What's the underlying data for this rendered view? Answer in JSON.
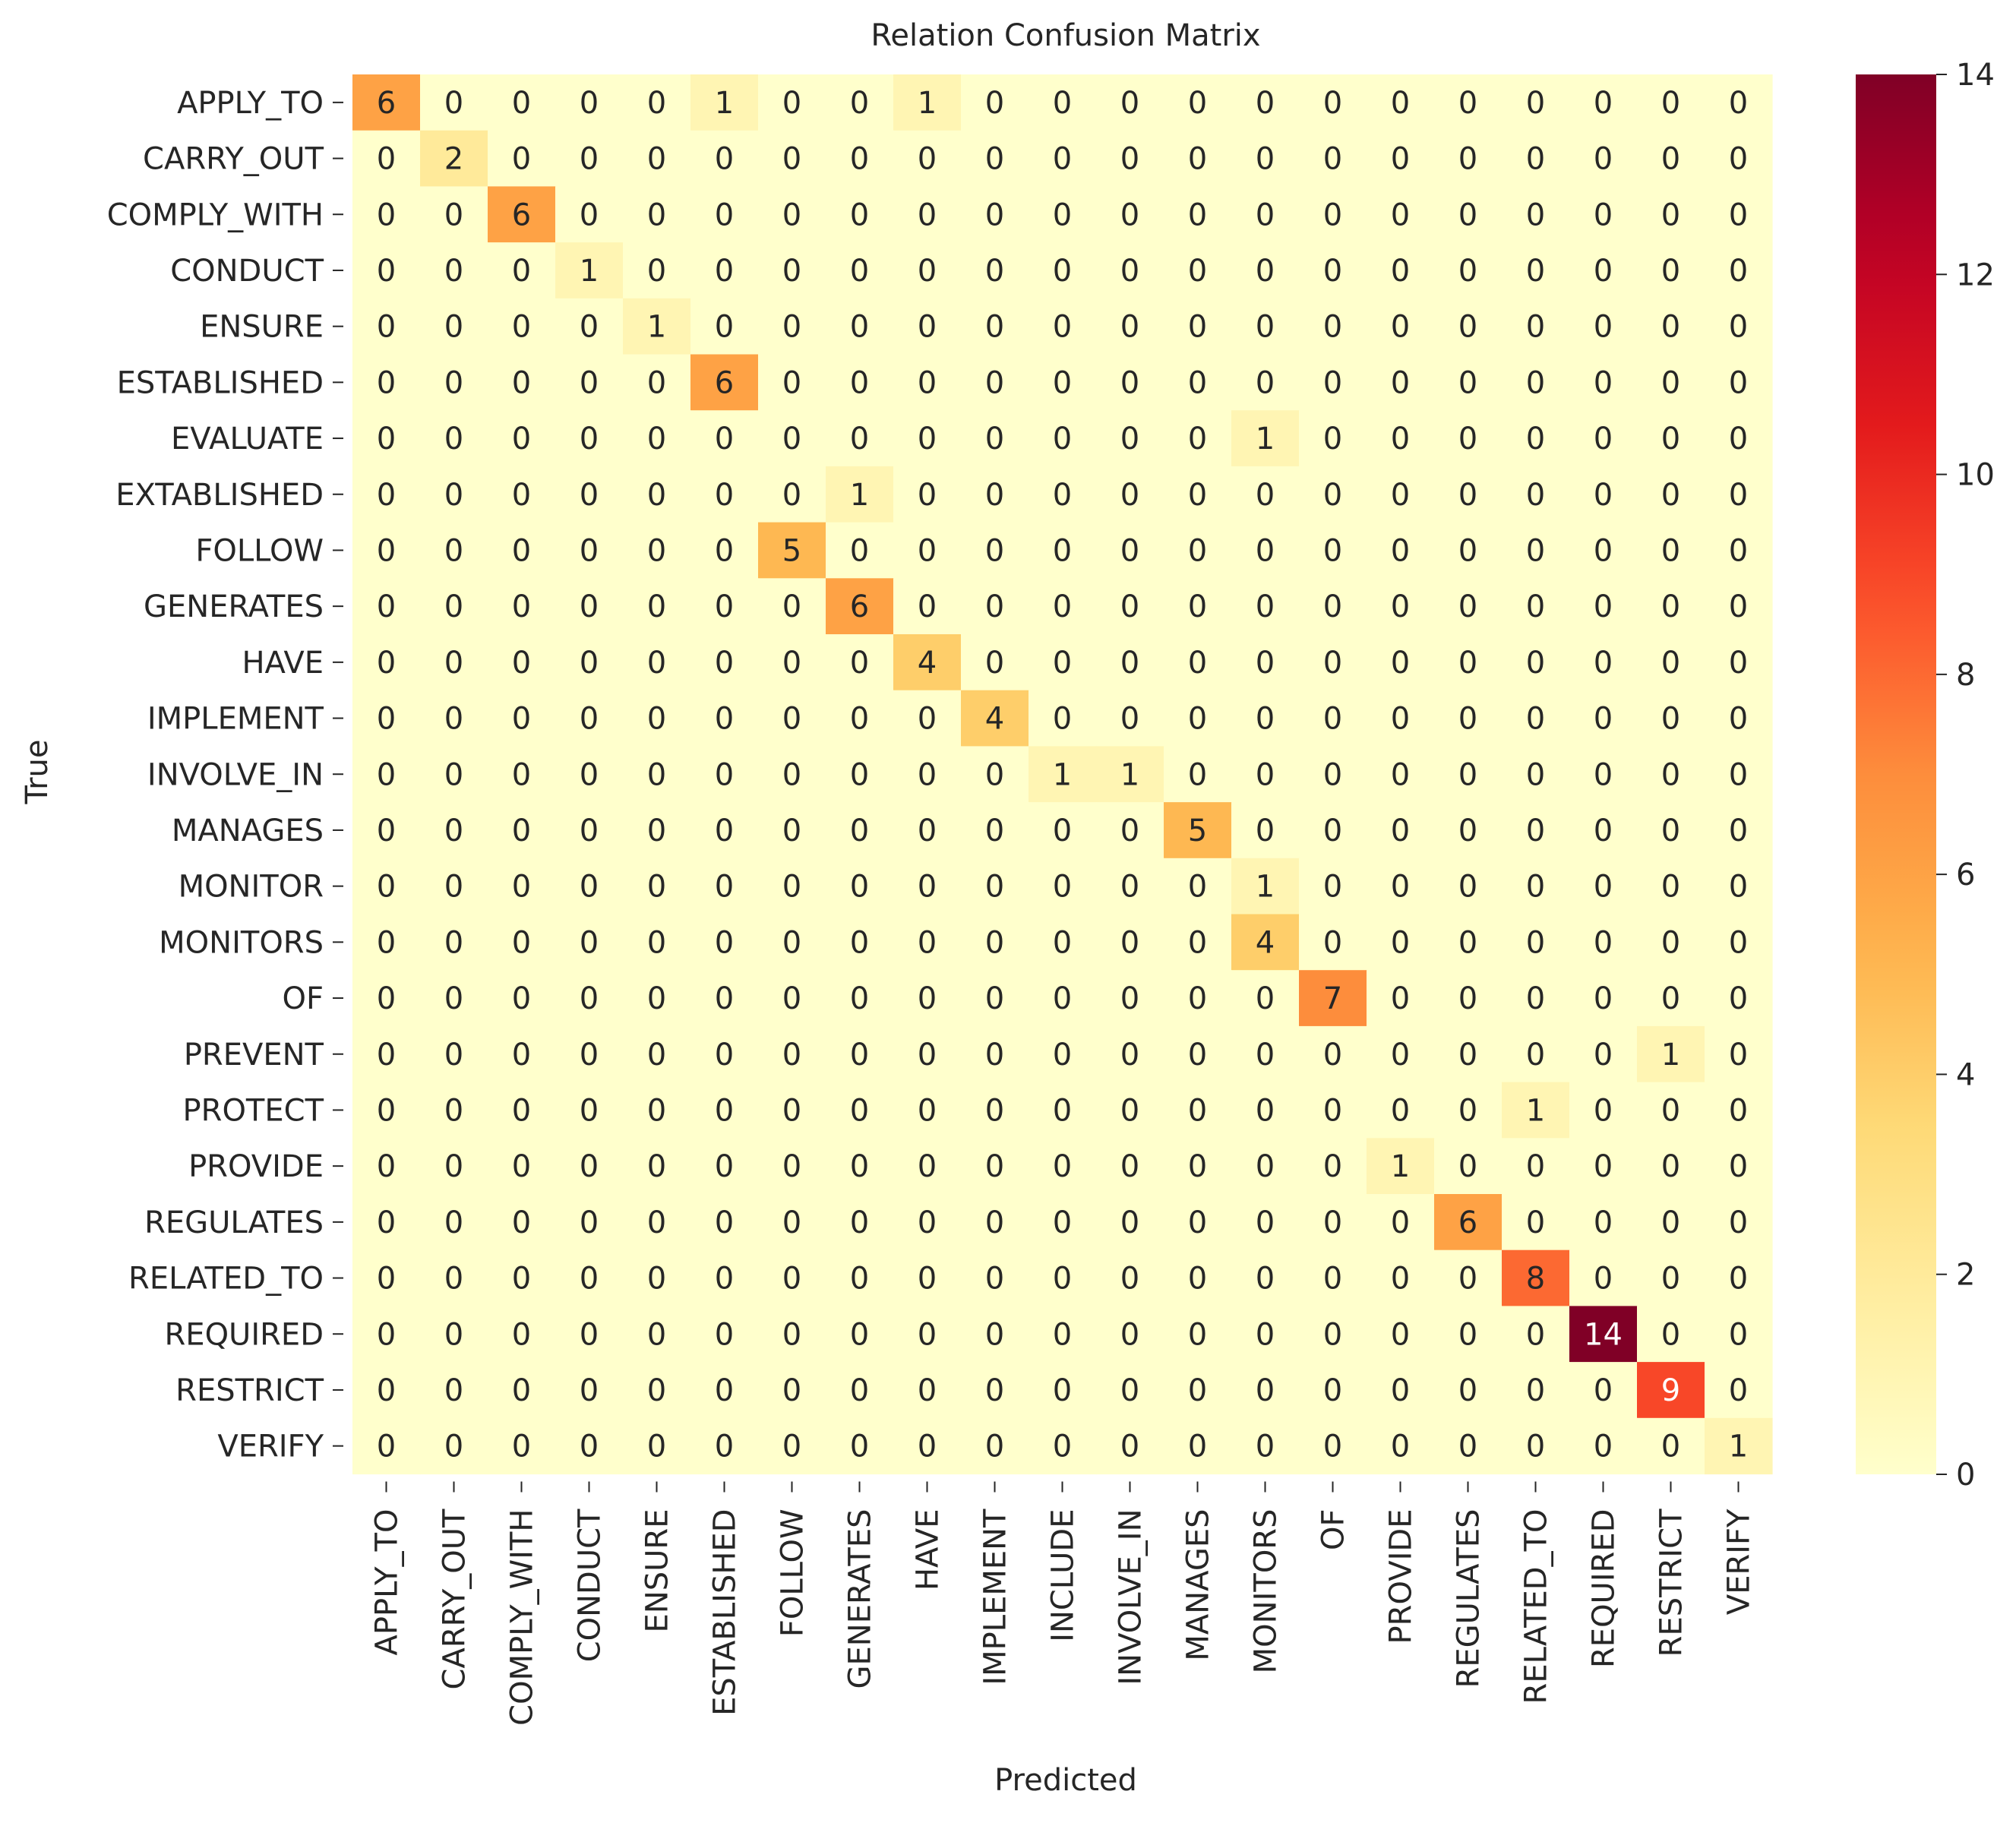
{
  "chart_data": {
    "type": "heatmap",
    "title": "Relation Confusion Matrix",
    "xlabel": "Predicted",
    "ylabel": "True",
    "x_categories": [
      "APPLY_TO",
      "CARRY_OUT",
      "COMPLY_WITH",
      "CONDUCT",
      "ENSURE",
      "ESTABLISHED",
      "FOLLOW",
      "GENERATES",
      "HAVE",
      "IMPLEMENT",
      "INCLUDE",
      "INVOLVE_IN",
      "MANAGES",
      "MONITORS",
      "OF",
      "PROVIDE",
      "REGULATES",
      "RELATED_TO",
      "REQUIRED",
      "RESTRICT",
      "VERIFY"
    ],
    "y_categories": [
      "APPLY_TO",
      "CARRY_OUT",
      "COMPLY_WITH",
      "CONDUCT",
      "ENSURE",
      "ESTABLISHED",
      "EVALUATE",
      "EXTABLISHED",
      "FOLLOW",
      "GENERATES",
      "HAVE",
      "IMPLEMENT",
      "INVOLVE_IN",
      "MANAGES",
      "MONITOR",
      "MONITORS",
      "OF",
      "PREVENT",
      "PROTECT",
      "PROVIDE",
      "REGULATES",
      "RELATED_TO",
      "REQUIRED",
      "RESTRICT",
      "VERIFY"
    ],
    "values": [
      [
        6,
        0,
        0,
        0,
        0,
        1,
        0,
        0,
        1,
        0,
        0,
        0,
        0,
        0,
        0,
        0,
        0,
        0,
        0,
        0,
        0
      ],
      [
        0,
        2,
        0,
        0,
        0,
        0,
        0,
        0,
        0,
        0,
        0,
        0,
        0,
        0,
        0,
        0,
        0,
        0,
        0,
        0,
        0
      ],
      [
        0,
        0,
        6,
        0,
        0,
        0,
        0,
        0,
        0,
        0,
        0,
        0,
        0,
        0,
        0,
        0,
        0,
        0,
        0,
        0,
        0
      ],
      [
        0,
        0,
        0,
        1,
        0,
        0,
        0,
        0,
        0,
        0,
        0,
        0,
        0,
        0,
        0,
        0,
        0,
        0,
        0,
        0,
        0
      ],
      [
        0,
        0,
        0,
        0,
        1,
        0,
        0,
        0,
        0,
        0,
        0,
        0,
        0,
        0,
        0,
        0,
        0,
        0,
        0,
        0,
        0
      ],
      [
        0,
        0,
        0,
        0,
        0,
        6,
        0,
        0,
        0,
        0,
        0,
        0,
        0,
        0,
        0,
        0,
        0,
        0,
        0,
        0,
        0
      ],
      [
        0,
        0,
        0,
        0,
        0,
        0,
        0,
        0,
        0,
        0,
        0,
        0,
        0,
        1,
        0,
        0,
        0,
        0,
        0,
        0,
        0
      ],
      [
        0,
        0,
        0,
        0,
        0,
        0,
        0,
        1,
        0,
        0,
        0,
        0,
        0,
        0,
        0,
        0,
        0,
        0,
        0,
        0,
        0
      ],
      [
        0,
        0,
        0,
        0,
        0,
        0,
        5,
        0,
        0,
        0,
        0,
        0,
        0,
        0,
        0,
        0,
        0,
        0,
        0,
        0,
        0
      ],
      [
        0,
        0,
        0,
        0,
        0,
        0,
        0,
        6,
        0,
        0,
        0,
        0,
        0,
        0,
        0,
        0,
        0,
        0,
        0,
        0,
        0
      ],
      [
        0,
        0,
        0,
        0,
        0,
        0,
        0,
        0,
        4,
        0,
        0,
        0,
        0,
        0,
        0,
        0,
        0,
        0,
        0,
        0,
        0
      ],
      [
        0,
        0,
        0,
        0,
        0,
        0,
        0,
        0,
        0,
        4,
        0,
        0,
        0,
        0,
        0,
        0,
        0,
        0,
        0,
        0,
        0
      ],
      [
        0,
        0,
        0,
        0,
        0,
        0,
        0,
        0,
        0,
        0,
        1,
        1,
        0,
        0,
        0,
        0,
        0,
        0,
        0,
        0,
        0
      ],
      [
        0,
        0,
        0,
        0,
        0,
        0,
        0,
        0,
        0,
        0,
        0,
        0,
        5,
        0,
        0,
        0,
        0,
        0,
        0,
        0,
        0
      ],
      [
        0,
        0,
        0,
        0,
        0,
        0,
        0,
        0,
        0,
        0,
        0,
        0,
        0,
        1,
        0,
        0,
        0,
        0,
        0,
        0,
        0
      ],
      [
        0,
        0,
        0,
        0,
        0,
        0,
        0,
        0,
        0,
        0,
        0,
        0,
        0,
        4,
        0,
        0,
        0,
        0,
        0,
        0,
        0
      ],
      [
        0,
        0,
        0,
        0,
        0,
        0,
        0,
        0,
        0,
        0,
        0,
        0,
        0,
        0,
        7,
        0,
        0,
        0,
        0,
        0,
        0
      ],
      [
        0,
        0,
        0,
        0,
        0,
        0,
        0,
        0,
        0,
        0,
        0,
        0,
        0,
        0,
        0,
        0,
        0,
        0,
        0,
        1,
        0
      ],
      [
        0,
        0,
        0,
        0,
        0,
        0,
        0,
        0,
        0,
        0,
        0,
        0,
        0,
        0,
        0,
        0,
        0,
        1,
        0,
        0,
        0
      ],
      [
        0,
        0,
        0,
        0,
        0,
        0,
        0,
        0,
        0,
        0,
        0,
        0,
        0,
        0,
        0,
        1,
        0,
        0,
        0,
        0,
        0
      ],
      [
        0,
        0,
        0,
        0,
        0,
        0,
        0,
        0,
        0,
        0,
        0,
        0,
        0,
        0,
        0,
        0,
        6,
        0,
        0,
        0,
        0
      ],
      [
        0,
        0,
        0,
        0,
        0,
        0,
        0,
        0,
        0,
        0,
        0,
        0,
        0,
        0,
        0,
        0,
        0,
        8,
        0,
        0,
        0
      ],
      [
        0,
        0,
        0,
        0,
        0,
        0,
        0,
        0,
        0,
        0,
        0,
        0,
        0,
        0,
        0,
        0,
        0,
        0,
        14,
        0,
        0
      ],
      [
        0,
        0,
        0,
        0,
        0,
        0,
        0,
        0,
        0,
        0,
        0,
        0,
        0,
        0,
        0,
        0,
        0,
        0,
        0,
        9,
        0
      ],
      [
        0,
        0,
        0,
        0,
        0,
        0,
        0,
        0,
        0,
        0,
        0,
        0,
        0,
        0,
        0,
        0,
        0,
        0,
        0,
        0,
        1
      ]
    ],
    "colorbar": {
      "min": 0,
      "max": 14,
      "ticks": [
        0,
        2,
        4,
        6,
        8,
        10,
        12,
        14
      ]
    },
    "colormap": "YlOrRd",
    "grid": false,
    "annotations": true
  }
}
